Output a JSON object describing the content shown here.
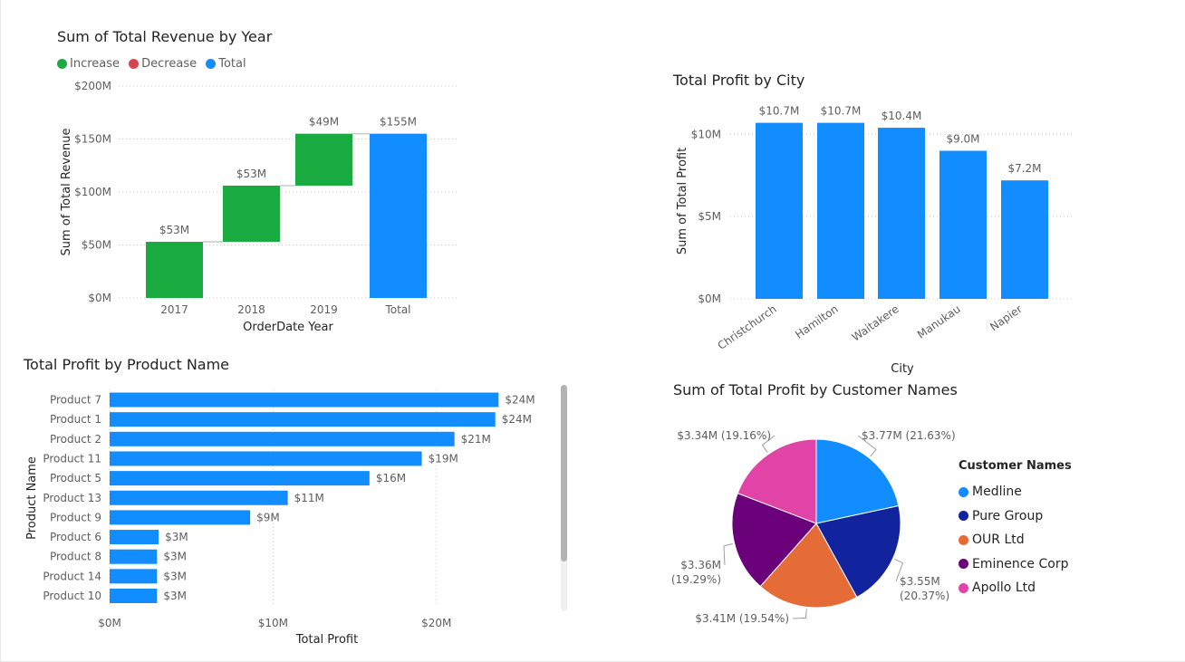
{
  "colors": {
    "increase": "#1AAB40",
    "decrease": "#D64550",
    "total": "#118DFF",
    "bar": "#118DFF",
    "grid": "#c8c8c8",
    "axis_text": "#605e5c",
    "connector": "#c8c8c8"
  },
  "chart_data": [
    {
      "type": "waterfall",
      "title": "Sum of Total Revenue by Year",
      "xlabel": "OrderDate Year",
      "ylabel": "Sum of Total Revenue",
      "legend": {
        "position": "top-left",
        "items": [
          {
            "label": "Increase",
            "color": "#1AAB40"
          },
          {
            "label": "Decrease",
            "color": "#D64550"
          },
          {
            "label": "Total",
            "color": "#118DFF"
          }
        ]
      },
      "categories": [
        "2017",
        "2018",
        "2019",
        "Total"
      ],
      "values": [
        53,
        53,
        49,
        155
      ],
      "kinds": [
        "increase",
        "increase",
        "increase",
        "total"
      ],
      "data_labels": [
        "$53M",
        "$53M",
        "$49M",
        "$155M"
      ],
      "ylim": [
        0,
        200
      ],
      "yticks": [
        0,
        50,
        100,
        150,
        200
      ],
      "ytick_labels": [
        "$0M",
        "$50M",
        "$100M",
        "$150M",
        "$200M"
      ],
      "grid": true
    },
    {
      "type": "bar",
      "title": "Total Profit by City",
      "xlabel": "City",
      "ylabel": "Sum of Total Profit",
      "categories": [
        "Christchurch",
        "Hamilton",
        "Waitakere",
        "Manukau",
        "Napier"
      ],
      "values": [
        10.7,
        10.7,
        10.4,
        9.0,
        7.2
      ],
      "data_labels": [
        "$10.7M",
        "$10.7M",
        "$10.4M",
        "$9.0M",
        "$7.2M"
      ],
      "ylim": [
        0,
        12
      ],
      "yticks": [
        0,
        5,
        10
      ],
      "ytick_labels": [
        "$0M",
        "$5M",
        "$10M"
      ],
      "grid": true
    },
    {
      "type": "barh",
      "title": "Total Profit by Product Name",
      "xlabel": "Total Profit",
      "ylabel": "Product Name",
      "categories": [
        "Product 7",
        "Product 1",
        "Product 2",
        "Product 11",
        "Product 5",
        "Product 13",
        "Product 9",
        "Product 6",
        "Product 8",
        "Product 14",
        "Product 10"
      ],
      "values": [
        23.8,
        23.6,
        21.1,
        19.1,
        15.9,
        10.9,
        8.6,
        3.0,
        2.9,
        2.9,
        2.9
      ],
      "data_labels": [
        "$24M",
        "$24M",
        "$21M",
        "$19M",
        "$16M",
        "$11M",
        "$9M",
        "$3M",
        "$3M",
        "$3M",
        "$3M"
      ],
      "xlim": [
        0,
        25
      ],
      "xticks": [
        0,
        10,
        20
      ],
      "xtick_labels": [
        "$0M",
        "$10M",
        "$20M"
      ],
      "grid": true
    },
    {
      "type": "pie",
      "title": "Sum of Total Profit by Customer Names",
      "legend": {
        "title": "Customer Names",
        "position": "right"
      },
      "slices": [
        {
          "label": "Medline",
          "value": 3.77,
          "percent": 21.63,
          "color": "#118DFF",
          "data_label": "$3.77M (21.63%)"
        },
        {
          "label": "Pure Group",
          "value": 3.55,
          "percent": 20.37,
          "color": "#12239E",
          "data_label": "$3.55M (20.37%)",
          "data_label_lines": [
            "$3.55M",
            "(20.37%)"
          ]
        },
        {
          "label": "OUR Ltd",
          "value": 3.41,
          "percent": 19.54,
          "color": "#E66C37",
          "data_label": "$3.41M (19.54%)"
        },
        {
          "label": "Eminence Corp",
          "value": 3.36,
          "percent": 19.29,
          "color": "#6B007B",
          "data_label": "$3.36M (19.29%)",
          "data_label_lines": [
            "$3.36M",
            "(19.29%)"
          ]
        },
        {
          "label": "Apollo Ltd",
          "value": 3.34,
          "percent": 19.16,
          "color": "#E044A7",
          "data_label": "$3.34M (19.16%)"
        }
      ]
    }
  ]
}
